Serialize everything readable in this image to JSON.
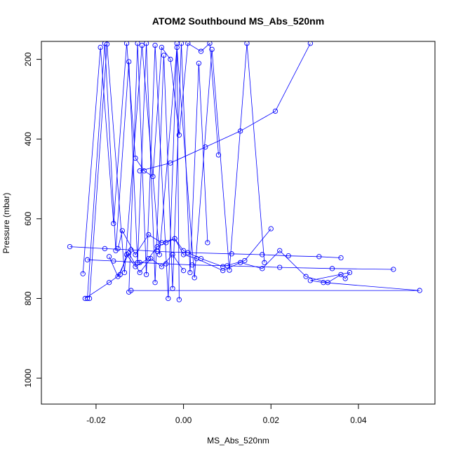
{
  "chart_data": {
    "type": "line",
    "title": "ATOM2 Southbound MS_Abs_520nm",
    "xlabel": "MS_Abs_520nm",
    "ylabel": "Pressure (mbar)",
    "xlim": [
      -0.0325,
      0.0575
    ],
    "ylim": [
      1065,
      155
    ],
    "y_reversed": true,
    "grid": false,
    "legend": "none",
    "marker": "open-circle",
    "series_color": "#0000ff",
    "x_ticks": [
      {
        "value": -0.02,
        "label": "-0.02"
      },
      {
        "value": 0.0,
        "label": "0.00"
      },
      {
        "value": 0.02,
        "label": "0.02"
      },
      {
        "value": 0.04,
        "label": "0.04"
      }
    ],
    "y_ticks": [
      {
        "value": 200,
        "label": "200"
      },
      {
        "value": 400,
        "label": "400"
      },
      {
        "value": 600,
        "label": "600"
      },
      {
        "value": 800,
        "label": "800"
      },
      {
        "value": 1000,
        "label": "1000"
      }
    ],
    "series": [
      {
        "x": [
          -0.0225,
          -0.017,
          -0.0145,
          -0.013,
          -0.011,
          -0.008,
          -0.006,
          -0.004,
          -0.002,
          0.0,
          0.003,
          0.009,
          0.013,
          0.018,
          0.022,
          0.028,
          0.033,
          0.036,
          0.037,
          0.038,
          0.029,
          0.032,
          0.054,
          -0.012
        ],
        "y": [
          800,
          760,
          740,
          690,
          720,
          700,
          670,
          660,
          650,
          690,
          700,
          730,
          710,
          725,
          680,
          745,
          760,
          740,
          750,
          735,
          755,
          760,
          780,
          780
        ]
      },
      {
        "x": [
          -0.026,
          -0.018,
          -0.012,
          -0.006,
          0.001,
          0.011,
          0.018,
          0.024,
          0.031,
          0.036
        ],
        "y": [
          670,
          675,
          678,
          682,
          685,
          688,
          690,
          693,
          695,
          698
        ]
      },
      {
        "x": [
          0.048,
          0.034,
          0.022,
          0.01,
          0.002,
          -0.004,
          -0.01,
          -0.016,
          -0.022
        ],
        "y": [
          727,
          725,
          722,
          718,
          716,
          713,
          710,
          706,
          703
        ]
      },
      {
        "x": [
          -0.023,
          -0.019,
          -0.016,
          -0.013,
          -0.011,
          -0.009,
          -0.007,
          -0.005,
          -0.003,
          -0.001,
          0.001,
          0.004,
          0.006,
          0.008
        ],
        "y": [
          738,
          170,
          612,
          160,
          448,
          480,
          494,
          170,
          200,
          390,
          160,
          180,
          160,
          440
        ]
      },
      {
        "x": [
          -0.022,
          -0.018,
          -0.0155,
          -0.0125,
          -0.0105,
          -0.0085,
          -0.0065,
          -0.0045,
          -0.0025,
          -0.0005,
          0.0015,
          0.0035,
          0.0055
        ],
        "y": [
          800,
          160,
          680,
          206,
          710,
          160,
          760,
          190,
          775,
          160,
          735,
          210,
          660
        ]
      },
      {
        "x": [
          -0.0215,
          -0.0175,
          -0.0135,
          -0.0095,
          -0.0055,
          -0.0015,
          0.0025,
          0.0065,
          0.0105,
          0.0145,
          0.0185
        ],
        "y": [
          800,
          162,
          735,
          165,
          690,
          170,
          748,
          175,
          729,
          160,
          710
        ]
      },
      {
        "x": [
          -0.015,
          -0.014,
          -0.011,
          -0.008,
          -0.005,
          -0.002,
          0.0,
          0.004,
          0.009,
          0.014,
          0.02
        ],
        "y": [
          675,
          630,
          690,
          640,
          660,
          650,
          680,
          700,
          720,
          705,
          625
        ]
      },
      {
        "x": [
          -0.0125,
          -0.0105,
          -0.0085,
          -0.0065,
          -0.0035,
          -0.0015,
          -0.001
        ],
        "y": [
          784,
          160,
          740,
          165,
          800,
          160,
          803
        ]
      },
      {
        "x": [
          -0.017,
          -0.015,
          -0.0125,
          -0.01,
          -0.0075,
          -0.005,
          -0.0025,
          0.0
        ],
        "y": [
          695,
          745,
          686,
          735,
          700,
          720,
          690,
          730
        ]
      },
      {
        "x": [
          -0.01,
          -0.003,
          0.005,
          0.013,
          0.021,
          0.029
        ],
        "y": [
          480,
          460,
          420,
          380,
          330,
          160
        ]
      }
    ]
  }
}
